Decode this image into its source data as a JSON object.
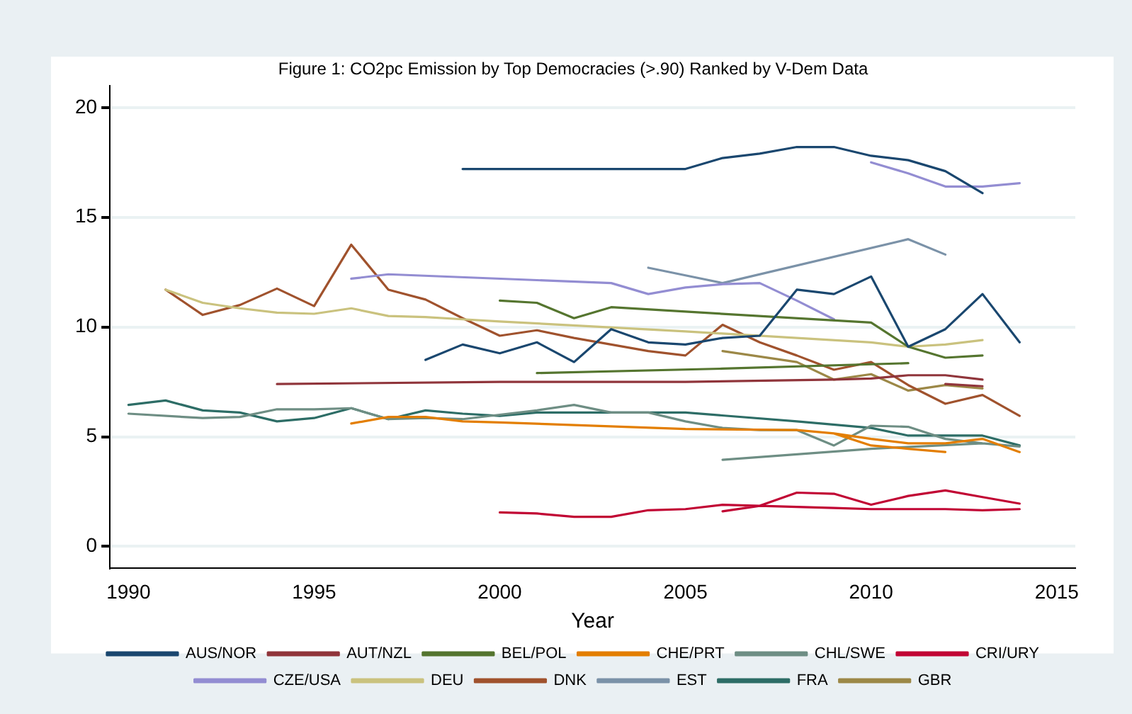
{
  "chart_data": {
    "type": "line",
    "title": "Figure 1: CO2pc Emission by Top Democracies (>.90) Ranked by V-Dem Data",
    "xlabel": "Year",
    "xlim": [
      1989.5,
      2015.5
    ],
    "xticks": [
      1990,
      1995,
      2000,
      2005,
      2010,
      2015
    ],
    "ylim": [
      -1,
      21
    ],
    "yticks": [
      0,
      5,
      10,
      15,
      20
    ],
    "grid": "y",
    "legend": "bottom",
    "marker": "none",
    "line_style": "solid",
    "series": [
      {
        "name": "AUS/NOR",
        "color": "#1a476f",
        "x": [
          1999,
          2005,
          2006,
          2007,
          2008,
          2009,
          2010,
          2011,
          2012,
          2013,
          null,
          1998,
          1999,
          2000,
          2001,
          2002,
          2003,
          2004,
          2005,
          2006,
          2007,
          2008,
          2009,
          2010,
          2011,
          2012,
          2013,
          2014
        ],
        "values": [
          17.2,
          17.2,
          17.7,
          17.9,
          18.2,
          18.2,
          17.8,
          17.6,
          17.1,
          16.1,
          null,
          8.5,
          9.2,
          8.8,
          9.3,
          8.4,
          9.9,
          9.3,
          9.2,
          9.5,
          9.6,
          11.7,
          11.5,
          12.3,
          9.1,
          9.9,
          11.5,
          9.3
        ]
      },
      {
        "name": "AUT/NZL",
        "color": "#90353b",
        "x": [
          1994,
          2000,
          2005,
          2009,
          2010,
          2011,
          2012,
          2013,
          null,
          2012,
          2013
        ],
        "values": [
          7.4,
          7.5,
          7.5,
          7.6,
          7.65,
          7.8,
          7.8,
          7.6,
          null,
          7.4,
          7.3
        ]
      },
      {
        "name": "BEL/POL",
        "color": "#55752f",
        "x": [
          2000,
          2001,
          2002,
          2003,
          2010,
          2011,
          2012,
          2013,
          null,
          2001,
          2006,
          2011
        ],
        "values": [
          11.2,
          11.1,
          10.4,
          10.9,
          10.2,
          9.1,
          8.6,
          8.7,
          null,
          7.9,
          8.1,
          8.35
        ]
      },
      {
        "name": "CHE/PRT",
        "color": "#e37e00",
        "x": [
          1996,
          1997,
          1998,
          1999,
          2000,
          2005,
          2008,
          2009,
          2010,
          2011,
          2012,
          null,
          2008,
          2009,
          2010,
          2011,
          2012,
          2013,
          2014
        ],
        "values": [
          5.6,
          5.9,
          5.9,
          5.7,
          5.65,
          5.35,
          5.3,
          5.15,
          4.6,
          4.45,
          4.3,
          null,
          5.3,
          5.15,
          4.9,
          4.7,
          4.7,
          4.9,
          4.3
        ]
      },
      {
        "name": "CHL/SWE",
        "color": "#6e8e84",
        "x": [
          2006,
          2010,
          2013,
          null,
          1990,
          1992,
          1993,
          1994,
          1995,
          1996,
          1997,
          1998,
          1999,
          2000,
          2001,
          2002,
          2003,
          2004,
          2005,
          2006,
          2007,
          2008,
          2009,
          2010,
          2011,
          2012,
          2013,
          2014
        ],
        "values": [
          3.95,
          4.45,
          4.7,
          null,
          6.05,
          5.85,
          5.9,
          6.25,
          6.25,
          6.3,
          5.8,
          5.85,
          5.8,
          6.0,
          6.2,
          6.45,
          6.1,
          6.1,
          5.7,
          5.4,
          5.3,
          5.3,
          4.6,
          5.5,
          5.45,
          4.9,
          4.7,
          4.55
        ]
      },
      {
        "name": "CRI/URY",
        "color": "#c10534",
        "x": [
          2000,
          2001,
          2002,
          2003,
          2004,
          2005,
          2006,
          2007,
          2008,
          2009,
          2010,
          2011,
          2012,
          2013,
          2014,
          null,
          2006,
          2007,
          2008,
          2009,
          2010,
          2011,
          2012,
          2013,
          2014
        ],
        "values": [
          1.55,
          1.5,
          1.35,
          1.35,
          1.65,
          1.7,
          1.9,
          1.85,
          2.45,
          2.4,
          1.9,
          2.3,
          2.55,
          2.25,
          1.95,
          null,
          1.6,
          1.85,
          1.8,
          1.75,
          1.7,
          1.7,
          1.7,
          1.65,
          1.7
        ]
      },
      {
        "name": "CZE/USA",
        "color": "#938dd2",
        "x": [
          1996,
          1997,
          2003,
          2004,
          2005,
          2006,
          2007,
          2008,
          2009,
          null,
          2010,
          2011,
          2012,
          2013,
          2014
        ],
        "values": [
          12.2,
          12.4,
          12.0,
          11.5,
          11.8,
          11.95,
          12.0,
          11.2,
          10.35,
          null,
          17.5,
          17.0,
          16.4,
          16.4,
          16.55
        ]
      },
      {
        "name": "DEU",
        "color": "#cac27e",
        "x": [
          1991,
          1992,
          1993,
          1994,
          1995,
          1996,
          1997,
          1998,
          1999,
          2000,
          2005,
          2010,
          2011,
          2012,
          2013
        ],
        "values": [
          11.7,
          11.1,
          10.85,
          10.65,
          10.6,
          10.85,
          10.5,
          10.45,
          10.35,
          10.25,
          9.8,
          9.3,
          9.1,
          9.2,
          9.4
        ]
      },
      {
        "name": "DNK",
        "color": "#a0522d",
        "x": [
          1991,
          1992,
          1993,
          1994,
          1995,
          1996,
          1997,
          1998,
          1999,
          2000,
          2001,
          2002,
          2003,
          2004,
          2005,
          2006,
          2007,
          2008,
          2009,
          2010,
          2011,
          2012,
          2013,
          2014
        ],
        "values": [
          11.7,
          10.55,
          11.0,
          11.75,
          10.95,
          13.75,
          11.7,
          11.25,
          10.4,
          9.6,
          9.85,
          9.5,
          9.2,
          8.9,
          8.7,
          10.1,
          9.3,
          8.7,
          8.05,
          8.4,
          7.35,
          6.5,
          6.9,
          5.95
        ]
      },
      {
        "name": "EST",
        "color": "#7b92a8",
        "x": [
          2004,
          2005,
          2006,
          2011,
          2012
        ],
        "values": [
          12.7,
          12.35,
          12.0,
          14.0,
          13.3
        ]
      },
      {
        "name": "FRA",
        "color": "#2d6d66",
        "x": [
          1990,
          1991,
          1992,
          1993,
          1994,
          1995,
          1996,
          1997,
          1998,
          1999,
          2000,
          2001,
          2003,
          2005,
          2008,
          2010,
          2011,
          2012,
          2013,
          2014
        ],
        "values": [
          6.45,
          6.65,
          6.2,
          6.1,
          5.7,
          5.85,
          6.3,
          5.8,
          6.2,
          6.05,
          5.95,
          6.1,
          6.1,
          6.1,
          5.7,
          5.4,
          5.05,
          5.05,
          5.05,
          4.6
        ]
      },
      {
        "name": "GBR",
        "color": "#9c8847",
        "x": [
          2006,
          2007,
          2008,
          2009,
          2010,
          2011,
          2012,
          2013
        ],
        "values": [
          8.9,
          8.65,
          8.4,
          7.6,
          7.85,
          7.1,
          7.35,
          7.2
        ]
      }
    ]
  }
}
